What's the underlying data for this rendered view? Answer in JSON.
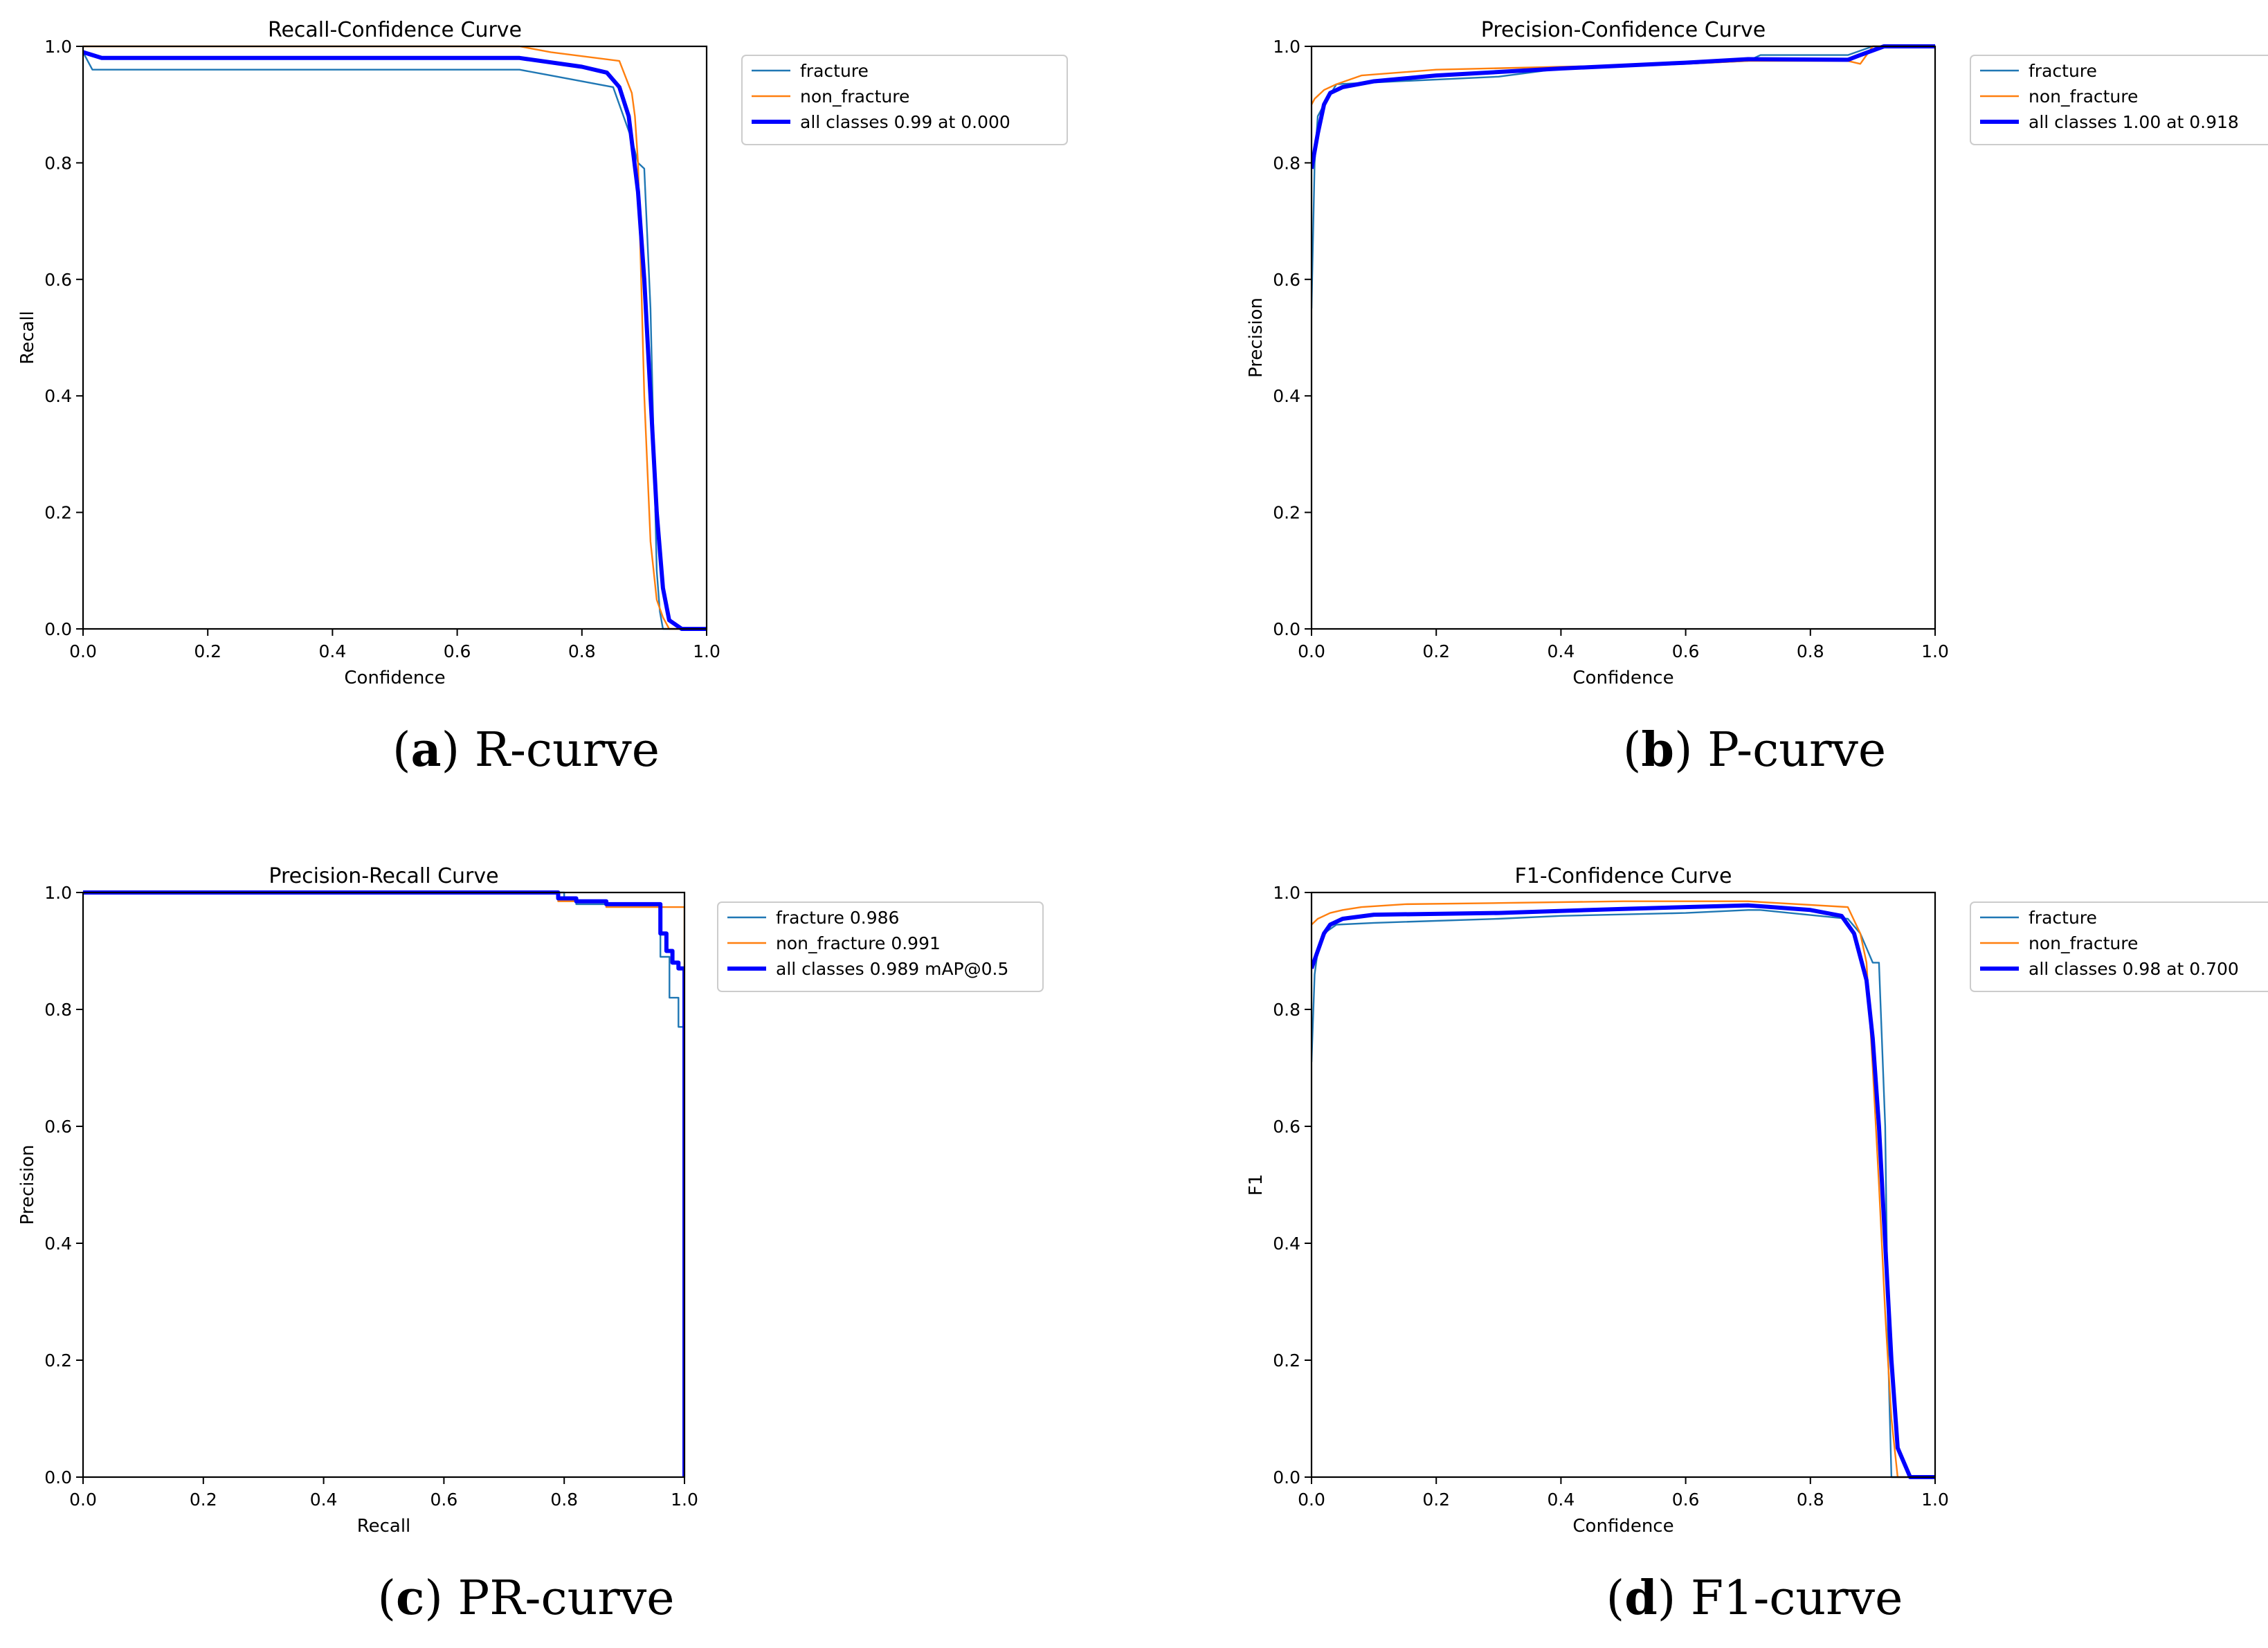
{
  "colors": {
    "c0": "#1f77b4",
    "c1": "#ff7f0e",
    "all": "#0000ff",
    "axis": "#000000"
  },
  "panels": [
    {
      "caption": {
        "letter": "a",
        "text": "R-curve"
      },
      "chart_data": {
        "type": "line",
        "title": "Recall-Confidence Curve",
        "xlabel": "Confidence",
        "ylabel": "Recall",
        "xlim": [
          0,
          1
        ],
        "ylim": [
          0,
          1
        ],
        "xticks": [
          "0.0",
          "0.2",
          "0.4",
          "0.6",
          "0.8",
          "1.0"
        ],
        "yticks": [
          "0.0",
          "0.2",
          "0.4",
          "0.6",
          "0.8",
          "1.0"
        ],
        "grid": false,
        "legend_position": "outside-right",
        "series": [
          {
            "name": "fracture",
            "color": "c0",
            "width": 2.4,
            "x": [
              0,
              0.01,
              0.015,
              0.7,
              0.75,
              0.85,
              0.87,
              0.88,
              0.89,
              0.9,
              0.91,
              0.92,
              0.925,
              0.93,
              1.0
            ],
            "y": [
              0.99,
              0.97,
              0.96,
              0.96,
              0.95,
              0.93,
              0.87,
              0.84,
              0.8,
              0.79,
              0.55,
              0.1,
              0.03,
              0,
              0
            ]
          },
          {
            "name": "non_fracture",
            "color": "c1",
            "width": 2.4,
            "x": [
              0,
              0.7,
              0.75,
              0.86,
              0.88,
              0.885,
              0.89,
              0.895,
              0.9,
              0.91,
              0.92,
              0.93,
              0.94,
              1.0
            ],
            "y": [
              1.0,
              1.0,
              0.99,
              0.975,
              0.92,
              0.88,
              0.8,
              0.6,
              0.4,
              0.15,
              0.05,
              0.02,
              0,
              0
            ]
          },
          {
            "name": "all classes 0.99 at 0.000",
            "color": "all",
            "width": 6,
            "x": [
              0,
              0.03,
              0.7,
              0.8,
              0.84,
              0.86,
              0.875,
              0.89,
              0.9,
              0.91,
              0.92,
              0.93,
              0.94,
              0.96,
              1.0
            ],
            "y": [
              0.99,
              0.98,
              0.98,
              0.965,
              0.955,
              0.93,
              0.88,
              0.75,
              0.6,
              0.4,
              0.2,
              0.07,
              0.015,
              0,
              0
            ]
          }
        ]
      }
    },
    {
      "caption": {
        "letter": "b",
        "text": "P-curve"
      },
      "chart_data": {
        "type": "line",
        "title": "Precision-Confidence Curve",
        "xlabel": "Confidence",
        "ylabel": "Precision",
        "xlim": [
          0,
          1
        ],
        "ylim": [
          0,
          1
        ],
        "xticks": [
          "0.0",
          "0.2",
          "0.4",
          "0.6",
          "0.8",
          "1.0"
        ],
        "yticks": [
          "0.0",
          "0.2",
          "0.4",
          "0.6",
          "0.8",
          "1.0"
        ],
        "grid": false,
        "legend_position": "outside-right",
        "series": [
          {
            "name": "fracture",
            "color": "c0",
            "width": 2.4,
            "x": [
              0,
              0.005,
              0.01,
              0.02,
              0.04,
              0.1,
              0.3,
              0.4,
              0.6,
              0.7,
              0.72,
              0.86,
              0.9,
              0.92,
              1.0
            ],
            "y": [
              0.55,
              0.8,
              0.88,
              0.9,
              0.935,
              0.938,
              0.948,
              0.962,
              0.97,
              0.975,
              0.985,
              0.985,
              1.0,
              1.0,
              1.0
            ]
          },
          {
            "name": "non_fracture",
            "color": "c1",
            "width": 2.4,
            "x": [
              0,
              0.005,
              0.02,
              0.04,
              0.08,
              0.2,
              0.4,
              0.6,
              0.7,
              0.86,
              0.88,
              0.9,
              1.0
            ],
            "y": [
              0.9,
              0.91,
              0.925,
              0.935,
              0.95,
              0.96,
              0.965,
              0.97,
              0.975,
              0.975,
              0.97,
              1.0,
              1.0
            ]
          },
          {
            "name": "all classes 1.00 at 0.918",
            "color": "all",
            "width": 6,
            "x": [
              0,
              0.01,
              0.02,
              0.03,
              0.05,
              0.1,
              0.2,
              0.4,
              0.6,
              0.7,
              0.86,
              0.88,
              0.918,
              1.0
            ],
            "y": [
              0.79,
              0.85,
              0.9,
              0.92,
              0.93,
              0.94,
              0.95,
              0.962,
              0.972,
              0.978,
              0.977,
              0.985,
              1.0,
              1.0
            ]
          }
        ]
      }
    },
    {
      "caption": {
        "letter": "c",
        "text": "PR-curve"
      },
      "chart_data": {
        "type": "line",
        "title": "Precision-Recall Curve",
        "xlabel": "Recall",
        "ylabel": "Precision",
        "xlim": [
          0,
          1
        ],
        "ylim": [
          0,
          1
        ],
        "xticks": [
          "0.0",
          "0.2",
          "0.4",
          "0.6",
          "0.8",
          "1.0"
        ],
        "yticks": [
          "0.0",
          "0.2",
          "0.4",
          "0.6",
          "0.8",
          "1.0"
        ],
        "grid": false,
        "legend_position": "outside-right",
        "series": [
          {
            "name": "fracture 0.986",
            "color": "c0",
            "width": 2.4,
            "x": [
              0,
              0.8,
              0.8,
              0.82,
              0.82,
              0.96,
              0.96,
              0.975,
              0.975,
              0.99,
              0.99,
              1.0,
              1.0
            ],
            "y": [
              1.0,
              1.0,
              0.99,
              0.99,
              0.98,
              0.98,
              0.89,
              0.89,
              0.82,
              0.82,
              0.77,
              0.77,
              0
            ]
          },
          {
            "name": "non_fracture 0.991",
            "color": "c1",
            "width": 2.4,
            "x": [
              0,
              0.79,
              0.79,
              0.87,
              0.87,
              1.0,
              1.0
            ],
            "y": [
              1.0,
              1.0,
              0.985,
              0.985,
              0.975,
              0.975,
              0
            ]
          },
          {
            "name": "all classes 0.989 mAP@0.5",
            "color": "all",
            "width": 6,
            "x": [
              0,
              0.79,
              0.79,
              0.82,
              0.82,
              0.87,
              0.87,
              0.96,
              0.96,
              0.97,
              0.97,
              0.98,
              0.98,
              0.99,
              0.99,
              1.0,
              1.0
            ],
            "y": [
              1.0,
              1.0,
              0.99,
              0.99,
              0.985,
              0.985,
              0.98,
              0.98,
              0.93,
              0.93,
              0.9,
              0.9,
              0.88,
              0.88,
              0.87,
              0.87,
              0
            ]
          }
        ]
      }
    },
    {
      "caption": {
        "letter": "d",
        "text": "F1-curve"
      },
      "chart_data": {
        "type": "line",
        "title": "F1-Confidence Curve",
        "xlabel": "Confidence",
        "ylabel": "F1",
        "xlim": [
          0,
          1
        ],
        "ylim": [
          0,
          1
        ],
        "xticks": [
          "0.0",
          "0.2",
          "0.4",
          "0.6",
          "0.8",
          "1.0"
        ],
        "yticks": [
          "0.0",
          "0.2",
          "0.4",
          "0.6",
          "0.8",
          "1.0"
        ],
        "grid": false,
        "legend_position": "outside-right",
        "series": [
          {
            "name": "fracture",
            "color": "c0",
            "width": 2.4,
            "x": [
              0,
              0.005,
              0.01,
              0.02,
              0.04,
              0.1,
              0.3,
              0.4,
              0.6,
              0.7,
              0.72,
              0.86,
              0.88,
              0.9,
              0.91,
              0.92,
              0.925,
              0.93,
              1.0
            ],
            "y": [
              0.71,
              0.86,
              0.9,
              0.93,
              0.945,
              0.948,
              0.955,
              0.96,
              0.965,
              0.97,
              0.97,
              0.955,
              0.93,
              0.88,
              0.88,
              0.6,
              0.2,
              0,
              0
            ]
          },
          {
            "name": "non_fracture",
            "color": "c1",
            "width": 2.4,
            "x": [
              0,
              0.01,
              0.03,
              0.05,
              0.08,
              0.15,
              0.3,
              0.5,
              0.7,
              0.86,
              0.88,
              0.89,
              0.9,
              0.91,
              0.92,
              0.93,
              0.94,
              1.0
            ],
            "y": [
              0.945,
              0.955,
              0.965,
              0.97,
              0.975,
              0.98,
              0.982,
              0.985,
              0.985,
              0.975,
              0.93,
              0.88,
              0.7,
              0.5,
              0.28,
              0.1,
              0,
              0
            ]
          },
          {
            "name": "all classes 0.98 at 0.700",
            "color": "all",
            "width": 6,
            "x": [
              0,
              0.01,
              0.02,
              0.03,
              0.05,
              0.1,
              0.3,
              0.5,
              0.7,
              0.8,
              0.85,
              0.87,
              0.89,
              0.9,
              0.91,
              0.92,
              0.93,
              0.94,
              0.96,
              1.0
            ],
            "y": [
              0.87,
              0.9,
              0.93,
              0.945,
              0.955,
              0.962,
              0.965,
              0.972,
              0.978,
              0.97,
              0.96,
              0.93,
              0.85,
              0.75,
              0.6,
              0.4,
              0.2,
              0.05,
              0,
              0
            ]
          }
        ]
      }
    }
  ]
}
